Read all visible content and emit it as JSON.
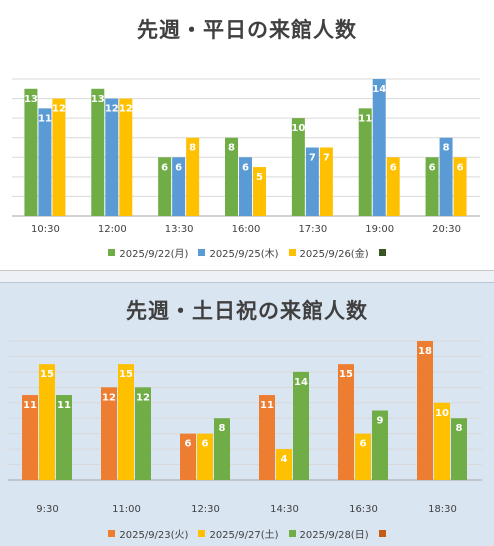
{
  "chart_data": [
    {
      "type": "bar",
      "title": "先週・平日の来館人数",
      "categories": [
        "10:30",
        "12:00",
        "13:30",
        "16:00",
        "17:30",
        "19:00",
        "20:30"
      ],
      "series": [
        {
          "name": "2025/9/22(月)",
          "color": "#70ad47",
          "values": [
            13,
            13,
            6,
            8,
            10,
            11,
            6
          ]
        },
        {
          "name": "2025/9/25(木)",
          "color": "#5b9bd5",
          "values": [
            11,
            12,
            6,
            6,
            7,
            14,
            8
          ]
        },
        {
          "name": "2025/9/26(金)",
          "color": "#ffc000",
          "values": [
            12,
            12,
            8,
            5,
            7,
            6,
            6
          ]
        }
      ],
      "extra_legend_color": "#375623",
      "ylim": [
        0,
        14
      ],
      "gridlines": true
    },
    {
      "type": "bar",
      "title": "先週・土日祝の来館人数",
      "categories": [
        "9:30",
        "11:00",
        "12:30",
        "14:30",
        "16:30",
        "18:30"
      ],
      "series": [
        {
          "name": "2025/9/23(火)",
          "color": "#ed7d31",
          "values": [
            11,
            12,
            6,
            11,
            15,
            18
          ]
        },
        {
          "name": "2025/9/27(土)",
          "color": "#ffc000",
          "values": [
            15,
            15,
            6,
            4,
            6,
            10
          ]
        },
        {
          "name": "2025/9/28(日)",
          "color": "#70ad47",
          "values": [
            11,
            12,
            8,
            14,
            9,
            8
          ]
        }
      ],
      "extra_legend_color": "#c55a11",
      "ylim": [
        0,
        18
      ],
      "gridlines": true
    }
  ]
}
